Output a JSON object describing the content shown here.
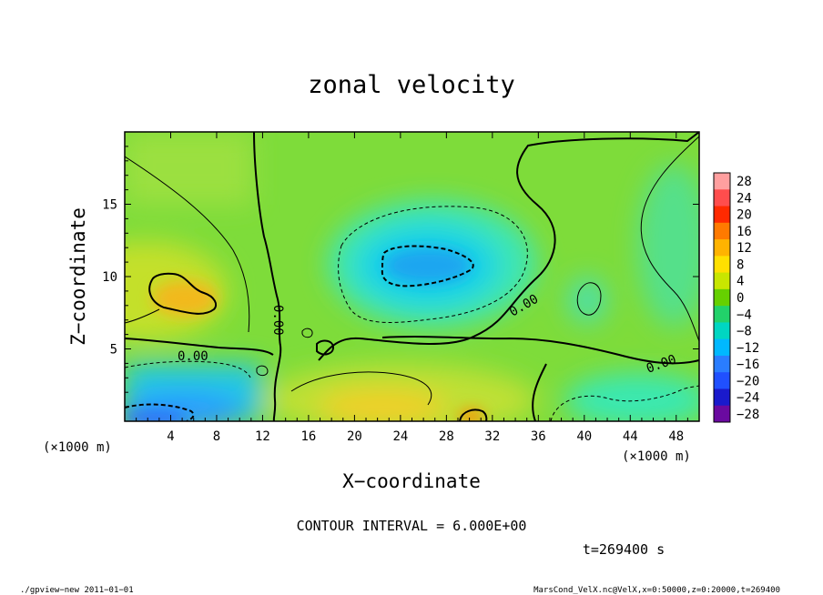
{
  "chart_data": {
    "type": "heatmap",
    "title": "zonal velocity",
    "xlabel": "X−coordinate",
    "ylabel": "Z−coordinate",
    "x_unit_label": "(×1000 m)",
    "x_range": [
      0,
      50
    ],
    "z_range": [
      0,
      20
    ],
    "x_ticks": [
      4,
      8,
      12,
      16,
      20,
      24,
      28,
      32,
      36,
      40,
      44,
      48
    ],
    "y_ticks": [
      5,
      10,
      15
    ],
    "colorbar_levels": [
      28,
      24,
      20,
      16,
      12,
      8,
      4,
      0,
      -4,
      -8,
      -12,
      -16,
      -20,
      -24,
      -28
    ],
    "colorbar_labels": [
      "28",
      "24",
      "20",
      "16",
      "12",
      "8",
      "4",
      "0",
      "−4",
      "−8",
      "−12",
      "−16",
      "−20",
      "−24",
      "−28"
    ],
    "colorbar_colors": [
      "#ff9f9f",
      "#ff4d4d",
      "#ff2a00",
      "#ff7a00",
      "#ffb300",
      "#ffe000",
      "#c8e600",
      "#66d000",
      "#22d26a",
      "#00d6c2",
      "#00b8ff",
      "#2a7dff",
      "#2050ff",
      "#1a1acc",
      "#6a0aa0"
    ],
    "contour_labels": [
      "0.00",
      "0.00",
      "0.00",
      "0.00"
    ],
    "contour_interval_text": "CONTOUR INTERVAL = 6.000E+00",
    "time_text": "t=269400  s",
    "cells": [
      {
        "x": 5,
        "z": 9,
        "u": 10
      },
      {
        "x": 25,
        "z": 11,
        "u": -12
      },
      {
        "x": 30,
        "z": 0.5,
        "u": 12
      },
      {
        "x": 3,
        "z": 1,
        "u": -10
      },
      {
        "x": 48,
        "z": 1,
        "u": -8
      }
    ]
  },
  "footer": {
    "left": "./gpview−new   2011−01−01",
    "right": "MarsCond_VelX.nc@VelX,x=0:50000,z=0:20000,t=269400"
  }
}
